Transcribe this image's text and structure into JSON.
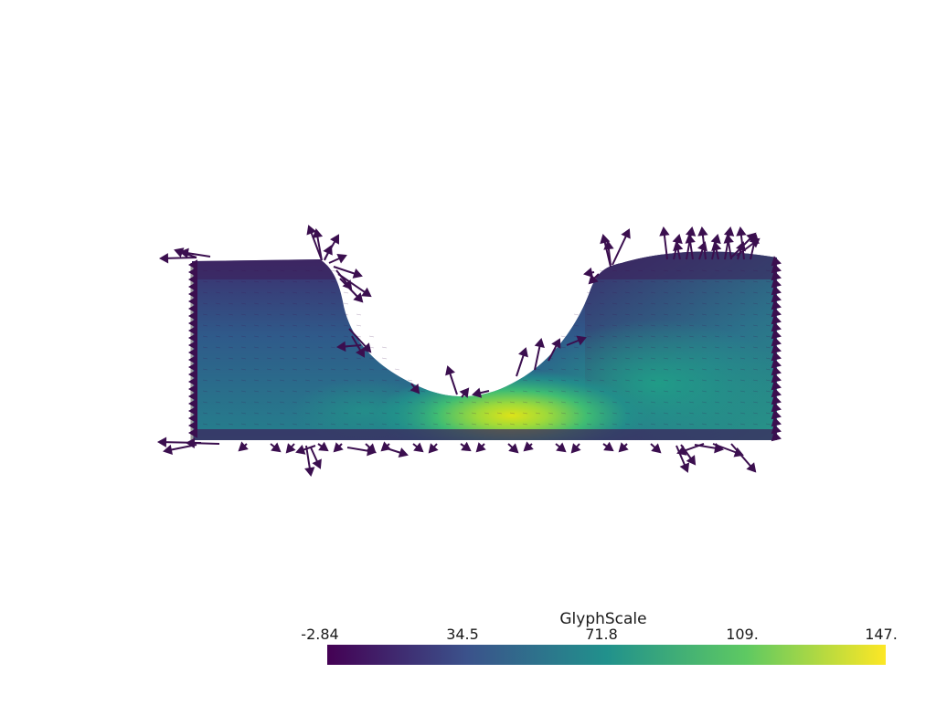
{
  "scene": {
    "mesh_color_scale": "viridis",
    "glyph_color": "#3b0f4f"
  },
  "scalar_bar": {
    "title": "GlyphScale",
    "ticks": [
      "-2.84",
      "34.5",
      "71.8",
      "109.",
      "147."
    ],
    "range": [
      -2.84,
      147
    ],
    "colormap": [
      "#440154",
      "#3b528b",
      "#21918c",
      "#5ec962",
      "#fde725"
    ]
  }
}
